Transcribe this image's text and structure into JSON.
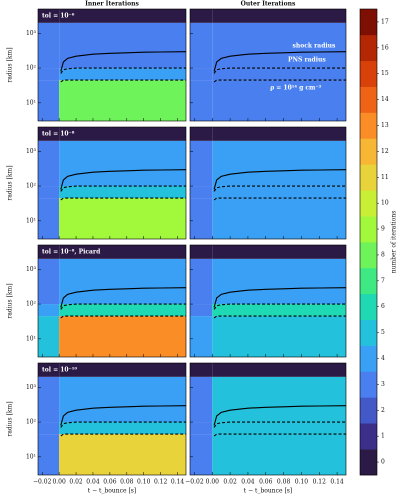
{
  "chart_data": {
    "type": "heatmap-grid",
    "column_titles": [
      "Inner Iterations",
      "Outer Iterations"
    ],
    "xlabel": "t − t_bounce [s]",
    "ylabel": "radius [km]",
    "xlim": [
      -0.025,
      0.15
    ],
    "xticks": [
      {
        "value": -0.02,
        "label": "−0.02"
      },
      {
        "value": 0.0,
        "label": "0.00"
      },
      {
        "value": 0.02,
        "label": "0.02"
      },
      {
        "value": 0.04,
        "label": "0.04"
      },
      {
        "value": 0.06,
        "label": "0.06"
      },
      {
        "value": 0.08,
        "label": "0.08"
      },
      {
        "value": 0.1,
        "label": "0.10"
      },
      {
        "value": 0.12,
        "label": "0.12"
      },
      {
        "value": 0.14,
        "label": "0.14"
      }
    ],
    "ylim": [
      3,
      5000
    ],
    "log_y": true,
    "yticks": [
      {
        "value": 10,
        "label": "10¹"
      },
      {
        "value": 100,
        "label": "10²"
      },
      {
        "value": 1000,
        "label": "10³"
      }
    ],
    "colorbar": {
      "label": "number of iterations",
      "ticks": [
        0,
        1,
        2,
        3,
        4,
        5,
        6,
        7,
        8,
        9,
        10,
        11,
        12,
        13,
        14,
        15,
        16,
        17
      ],
      "colors": [
        "#2b1a45",
        "#3b2f8a",
        "#4359c8",
        "#4a7ff0",
        "#3aa0f5",
        "#23c1db",
        "#1fd8b4",
        "#3ee983",
        "#6ff35a",
        "#a2f83b",
        "#c9ef34",
        "#e8d43a",
        "#f8b635",
        "#fb8d27",
        "#ef6317",
        "#d8420a",
        "#b32704",
        "#7d1002"
      ]
    },
    "curve_x": [
      0.002,
      0.005,
      0.01,
      0.02,
      0.04,
      0.06,
      0.08,
      0.1,
      0.12,
      0.15
    ],
    "shock_radius": [
      80,
      150,
      190,
      220,
      250,
      265,
      275,
      285,
      290,
      295
    ],
    "pns_radius": [
      70,
      90,
      95,
      100,
      100,
      100,
      100,
      100,
      100,
      100
    ],
    "density_radius": [
      40,
      45,
      45,
      45,
      45,
      45,
      45,
      45,
      45,
      45
    ],
    "annotations": [
      "shock radius",
      "PNS radius",
      "ρ = 10¹⁴ g cm⁻³"
    ],
    "panels": [
      {
        "label": "tol = 10⁻⁶",
        "x_edges": [
          -0.025,
          0.0,
          0.15
        ],
        "y_edges": [
          3,
          45,
          100,
          2000,
          5000
        ],
        "values": [
          [
            3,
            8
          ],
          [
            3,
            4
          ],
          [
            3,
            3
          ],
          [
            0,
            0
          ]
        ]
      },
      {
        "x_edges": [
          -0.025,
          0.0,
          0.15
        ],
        "y_edges": [
          3,
          45,
          100,
          2000,
          5000
        ],
        "values": [
          [
            3,
            3
          ],
          [
            3,
            3
          ],
          [
            3,
            3
          ],
          [
            0,
            0
          ]
        ]
      },
      {
        "label": "tol = 10⁻⁸",
        "x_edges": [
          -0.025,
          0.0,
          0.15
        ],
        "y_edges": [
          3,
          45,
          100,
          2000,
          5000
        ],
        "values": [
          [
            3,
            9
          ],
          [
            3,
            5
          ],
          [
            3,
            4
          ],
          [
            0,
            0
          ]
        ]
      },
      {
        "x_edges": [
          -0.025,
          0.0,
          0.15
        ],
        "y_edges": [
          3,
          45,
          100,
          2000,
          5000
        ],
        "values": [
          [
            3,
            4
          ],
          [
            3,
            4
          ],
          [
            3,
            4
          ],
          [
            0,
            0
          ]
        ]
      },
      {
        "label": "tol = 10⁻⁸, Picard",
        "x_edges": [
          -0.025,
          0.0,
          0.15
        ],
        "y_edges": [
          3,
          45,
          100,
          2000,
          5000
        ],
        "values": [
          [
            5,
            13
          ],
          [
            4,
            6
          ],
          [
            3,
            4
          ],
          [
            0,
            0
          ]
        ]
      },
      {
        "x_edges": [
          -0.025,
          0.0,
          0.15
        ],
        "y_edges": [
          3,
          45,
          100,
          2000,
          5000
        ],
        "values": [
          [
            4,
            5
          ],
          [
            3,
            6
          ],
          [
            3,
            4
          ],
          [
            0,
            0
          ]
        ]
      },
      {
        "label": "tol = 10⁻¹⁰",
        "x_edges": [
          -0.025,
          0.0,
          0.15
        ],
        "y_edges": [
          3,
          45,
          100,
          2000,
          5000
        ],
        "values": [
          [
            3,
            11
          ],
          [
            3,
            5
          ],
          [
            3,
            4
          ],
          [
            0,
            0
          ]
        ]
      },
      {
        "x_edges": [
          -0.025,
          0.0,
          0.15
        ],
        "y_edges": [
          3,
          45,
          100,
          2000,
          5000
        ],
        "values": [
          [
            3,
            5
          ],
          [
            3,
            5
          ],
          [
            3,
            5
          ],
          [
            0,
            0
          ]
        ]
      }
    ]
  }
}
